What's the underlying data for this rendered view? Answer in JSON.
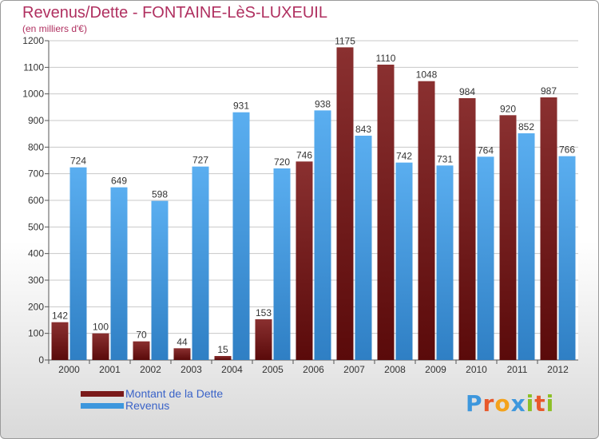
{
  "chart_data": {
    "type": "bar",
    "title": "Revenus/Dette - FONTAINE-LèS-LUXEUIL",
    "subtitle": "(en milliers d'€)",
    "categories": [
      "2000",
      "2001",
      "2002",
      "2003",
      "2004",
      "2005",
      "2006",
      "2007",
      "2008",
      "2009",
      "2010",
      "2011",
      "2012"
    ],
    "series": [
      {
        "name": "Montant de la Dette",
        "color": "#7a1a1a",
        "values": [
          142,
          100,
          70,
          44,
          15,
          153,
          746,
          1175,
          1110,
          1048,
          984,
          920,
          987
        ]
      },
      {
        "name": "Revenus",
        "color": "#3d97dd",
        "values": [
          724,
          649,
          598,
          727,
          931,
          720,
          938,
          843,
          742,
          731,
          764,
          852,
          766
        ]
      }
    ],
    "ylim": [
      0,
      1200
    ],
    "yticks": [
      0,
      100,
      200,
      300,
      400,
      500,
      600,
      700,
      800,
      900,
      1000,
      1100,
      1200
    ],
    "grid": true,
    "legend": "bottom-left"
  },
  "logo": {
    "letters": [
      "P",
      "r",
      "o",
      "x",
      "i",
      "t",
      "i"
    ],
    "colors": [
      "#3d97dd",
      "#e8582a",
      "#f4a21b",
      "#3d97dd",
      "#8cbf26",
      "#e8582a",
      "#8cbf26"
    ]
  }
}
